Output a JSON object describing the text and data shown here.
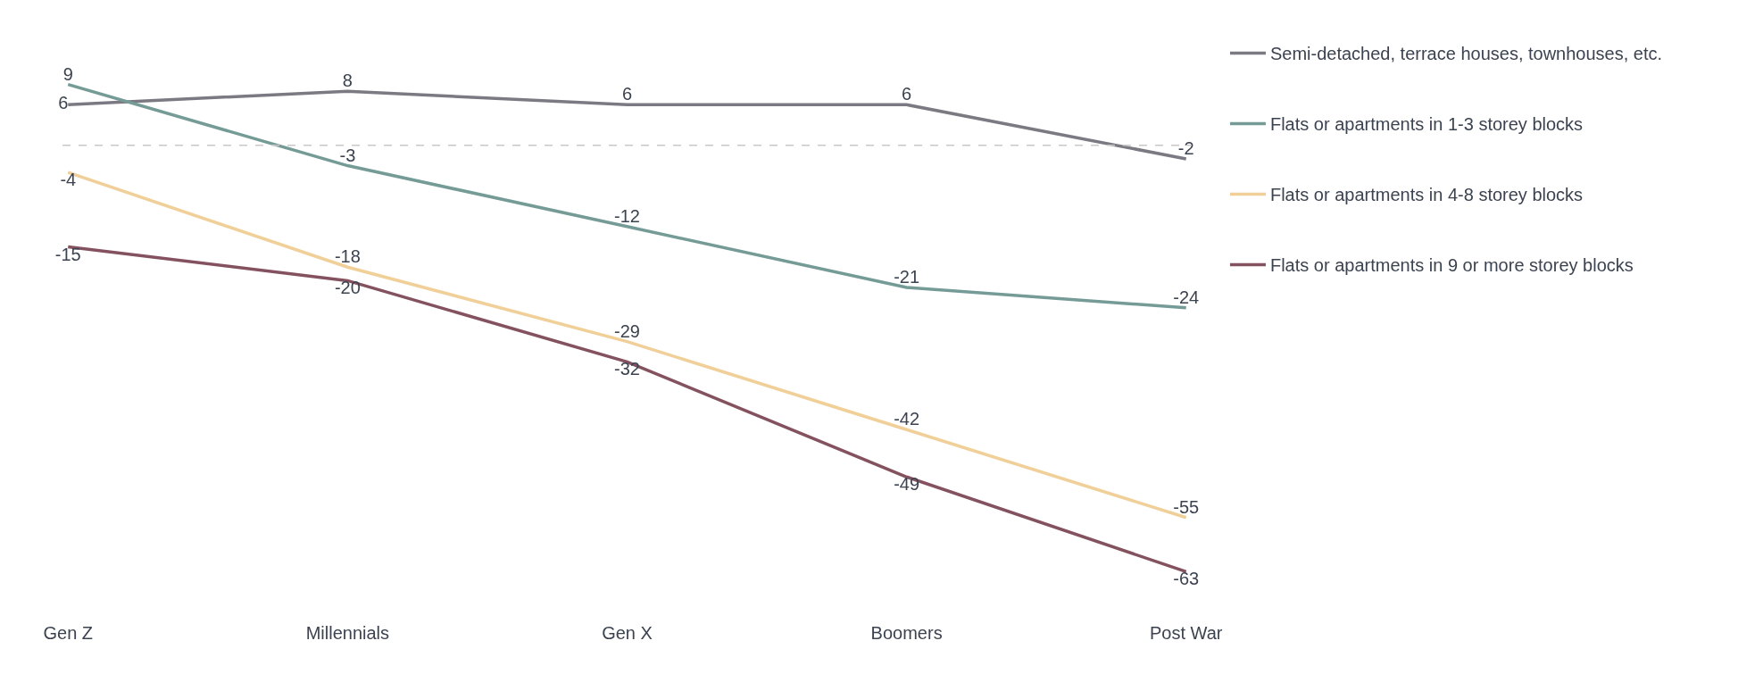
{
  "chart_data": {
    "type": "line",
    "categories": [
      "Gen Z",
      "Millennials",
      "Gen X",
      "Boomers",
      "Post War"
    ],
    "series": [
      {
        "name": "Semi-detached, terrace houses, townhouses, etc.",
        "color": "#7b7a82",
        "values": [
          6,
          8,
          6,
          6,
          -2
        ]
      },
      {
        "name": "Flats or apartments in 1-3 storey blocks",
        "color": "#759b97",
        "values": [
          9,
          -3,
          -12,
          -21,
          -24
        ]
      },
      {
        "name": "Flats or apartments in 4-8 storey blocks",
        "color": "#f0cf98",
        "values": [
          -4,
          -18,
          -29,
          -42,
          -55
        ]
      },
      {
        "name": "Flats or apartments in 9 or more storey blocks",
        "color": "#84525f",
        "values": [
          -15,
          -20,
          -32,
          -49,
          -63
        ]
      }
    ],
    "data_labels": true,
    "legend": "right",
    "grid": false,
    "marker": "none",
    "line_style": "solid",
    "ref_lines": [
      {
        "axis": "y",
        "value": 0,
        "color": "#c8c8c8",
        "line_style": "dashed"
      }
    ]
  }
}
